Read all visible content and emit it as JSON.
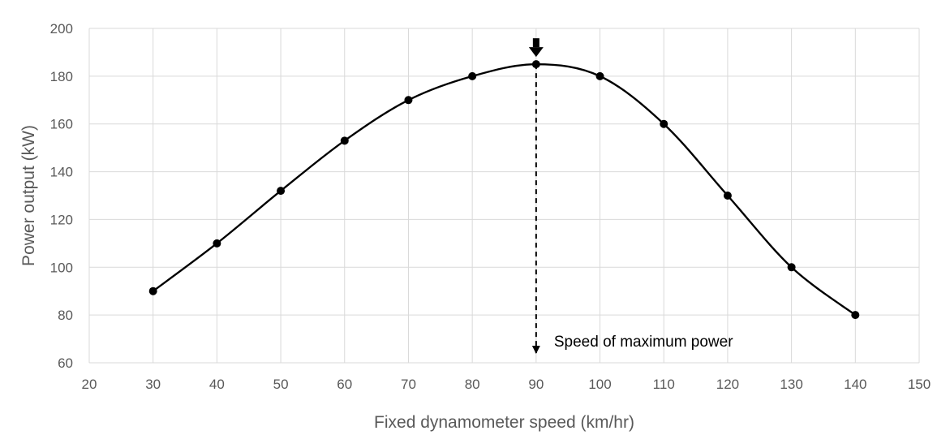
{
  "chart_data": {
    "type": "line",
    "title": "",
    "xlabel": "Fixed dynamometer speed (km/hr)",
    "ylabel": "Power output (kW)",
    "xlim": [
      20,
      150
    ],
    "ylim": [
      60,
      200
    ],
    "x_ticks": [
      20,
      30,
      40,
      50,
      60,
      70,
      80,
      90,
      100,
      110,
      120,
      130,
      140,
      150
    ],
    "y_ticks": [
      60,
      80,
      100,
      120,
      140,
      160,
      180,
      200
    ],
    "grid": true,
    "legend": "none",
    "smooth": true,
    "series": [
      {
        "x": [
          30,
          40,
          50,
          60,
          70,
          80,
          90,
          100,
          110,
          120,
          130,
          140
        ],
        "y": [
          90,
          110,
          132,
          153,
          170,
          180,
          185,
          180,
          160,
          130,
          100,
          80
        ]
      }
    ],
    "annotations": [
      {
        "text": "Speed of maximum power",
        "x": 90
      }
    ],
    "colors": {
      "line": "#000000",
      "grid": "#d9d9d9",
      "text": "#595959"
    }
  }
}
